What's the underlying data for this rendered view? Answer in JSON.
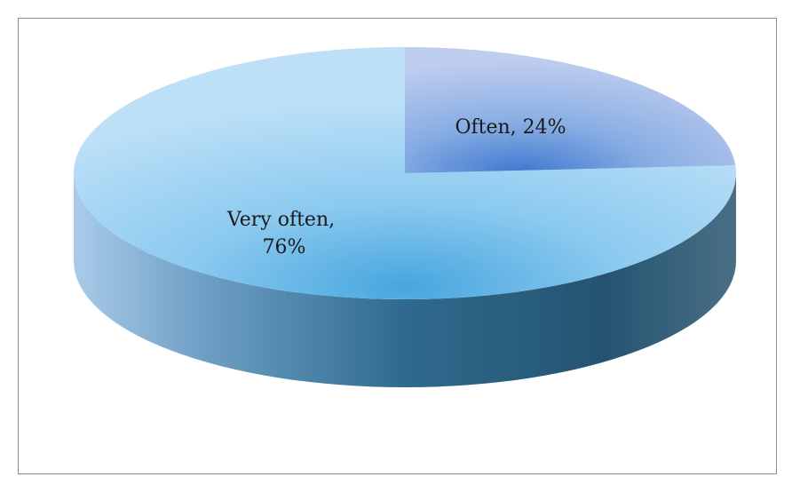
{
  "chart_data": {
    "type": "pie",
    "title": "",
    "categories": [
      "Often",
      "Very often"
    ],
    "values": [
      24,
      76
    ],
    "unit": "%",
    "data_labels": [
      {
        "name": "Often",
        "text": "24%"
      },
      {
        "name": "Very often",
        "text": "76%"
      }
    ],
    "legend": "none",
    "style": "3d",
    "colors": {
      "Often": "#b9c9ec",
      "Very often": "#b7dcf5",
      "side_light": "#a9cbe8",
      "side_dark": "#2a5a78"
    }
  }
}
